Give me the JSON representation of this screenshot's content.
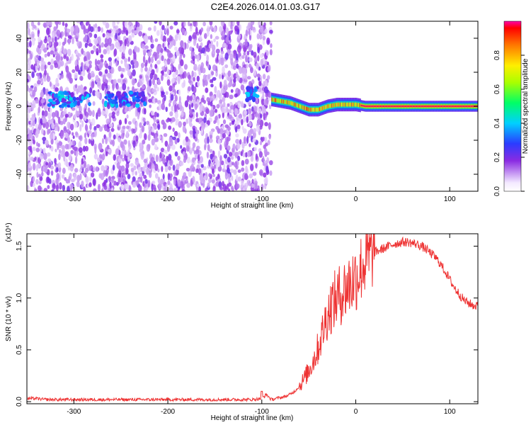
{
  "figure_title": "C2E4.2026.014.01.03.G17",
  "chart_data": [
    {
      "type": "heatmap",
      "panel": "spectrogram",
      "xlabel": "Height of straight line (km)",
      "ylabel": "Frequency (Hz)",
      "xlim": [
        -350,
        130
      ],
      "ylim": [
        -50,
        50
      ],
      "xticks": [
        -300,
        -200,
        -100,
        0,
        100
      ],
      "yticks": [
        -40,
        -20,
        0,
        20,
        40
      ],
      "colorbar": {
        "label": "Normalized spectral amplitude",
        "range": [
          0.0,
          1.0
        ],
        "ticks": [
          0.0,
          0.2,
          0.4,
          0.6,
          0.8
        ],
        "tick_labels": [
          "0.0",
          "0.2",
          "0.4",
          "0.6",
          "0.8"
        ],
        "colormap": "rainbow"
      },
      "noise_region_x": [
        -350,
        -90
      ],
      "noise_cluster_centers": [
        {
          "x": -305,
          "y": 4
        },
        {
          "x": -245,
          "y": 4
        },
        {
          "x": -110,
          "y": 7
        }
      ],
      "signal_trace": {
        "x": [
          -90,
          -80,
          -70,
          -60,
          -50,
          -40,
          -30,
          -20,
          -10,
          0,
          10,
          50,
          130
        ],
        "y": [
          4,
          3,
          2,
          0,
          -2,
          -2,
          0,
          1,
          1,
          1,
          0,
          0,
          0
        ]
      }
    },
    {
      "type": "line",
      "panel": "snr",
      "xlabel": "Height of straight line (km)",
      "ylabel": "SNR (10 * v/v)",
      "scale_label": "(x10⁴)",
      "xlim": [
        -350,
        130
      ],
      "ylim": [
        -0.02,
        1.62
      ],
      "xticks": [
        -300,
        -200,
        -100,
        0,
        100
      ],
      "yticks": [
        0.0,
        0.5,
        1.0,
        1.5
      ],
      "ytick_labels": [
        "0.0",
        "0.5",
        "1.0",
        "1.5"
      ],
      "color": "#ee3333",
      "series": [
        {
          "x": [
            -350,
            -340,
            -330,
            -320,
            -310,
            -300,
            -290,
            -280,
            -270,
            -260,
            -250,
            -240,
            -230,
            -220,
            -210,
            -200,
            -190,
            -180,
            -170,
            -160,
            -150,
            -140,
            -130,
            -120,
            -110,
            -100,
            -95,
            -90,
            -85,
            -80,
            -75,
            -70,
            -65,
            -60,
            -55,
            -50,
            -45,
            -40,
            -35,
            -30,
            -25,
            -20,
            -15,
            -10,
            -5,
            0,
            5,
            10,
            15,
            20,
            25,
            30,
            35,
            40,
            45,
            50,
            55,
            60,
            65,
            70,
            75,
            80,
            85,
            90,
            95,
            100,
            105,
            110,
            115,
            120,
            125,
            130
          ],
          "values": [
            0.03,
            0.03,
            0.02,
            0.02,
            0.02,
            0.02,
            0.02,
            0.02,
            0.02,
            0.02,
            0.02,
            0.02,
            0.02,
            0.02,
            0.02,
            0.02,
            0.02,
            0.02,
            0.02,
            0.02,
            0.02,
            0.02,
            0.02,
            0.02,
            0.02,
            0.03,
            0.07,
            0.02,
            0.03,
            0.04,
            0.05,
            0.07,
            0.1,
            0.15,
            0.22,
            0.3,
            0.4,
            0.52,
            0.68,
            0.85,
            0.95,
            1.0,
            1.05,
            1.1,
            1.15,
            1.2,
            1.28,
            1.35,
            1.4,
            1.44,
            1.46,
            1.48,
            1.5,
            1.52,
            1.53,
            1.54,
            1.54,
            1.53,
            1.52,
            1.5,
            1.47,
            1.43,
            1.39,
            1.33,
            1.26,
            1.18,
            1.1,
            1.04,
            0.98,
            0.95,
            0.93,
            0.92
          ]
        }
      ]
    }
  ]
}
